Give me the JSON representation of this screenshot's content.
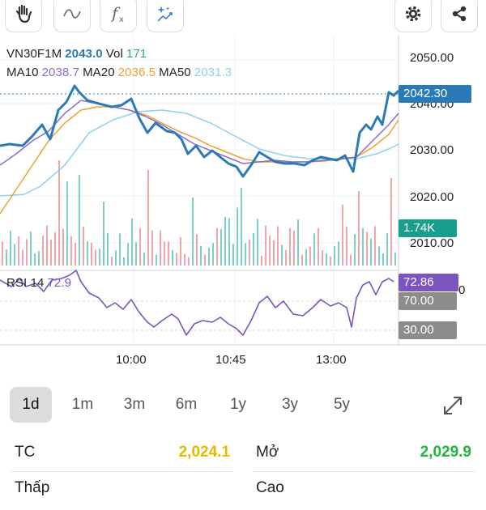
{
  "toolbar": {
    "icons": [
      "hand-icon",
      "wave-line-icon",
      "function-icon",
      "sparkle-chart-icon",
      "gear-icon",
      "share-icon"
    ]
  },
  "chart": {
    "symbol": "VN30F1M",
    "price": "2043.0",
    "vol_label": "Vol",
    "vol": "171",
    "ma10_label": "MA10",
    "ma10": "2038.7",
    "ma20_label": "MA20",
    "ma20": "2036.5",
    "ma50_label": "MA50",
    "ma50": "2031.3",
    "price_axis": [
      "2050.00",
      "2040.00",
      "2030.00",
      "2020.00",
      "2010.00"
    ],
    "last_price_tag": "2042.30",
    "volume_tag": "1.74K",
    "rsi_label": "RSI 14",
    "rsi_value": "72.9",
    "rsi_tag": "72.86",
    "rsi_upper": "70.00",
    "rsi_lower": "30.00",
    "time_axis": [
      "10:00",
      "10:45",
      "13:00"
    ],
    "colors": {
      "price": "#2a7ab8",
      "ma10": "#8a6bd0",
      "ma20": "#f0a030",
      "ma50": "#8fd0f0",
      "rsi": "#7a55c0",
      "vol_up": "#7ccfc4",
      "vol_down": "#f2a4a8",
      "volume_tag": "#1a9e8c",
      "rsi_tag": "#7a55c0",
      "level_tag": "#8c8c8c"
    }
  },
  "periods": {
    "items": [
      "1d",
      "1m",
      "3m",
      "6m",
      "1y",
      "3y",
      "5y"
    ],
    "active": "1d"
  },
  "stats": {
    "tc_label": "TC",
    "tc_value": "2,024.1",
    "mo_label": "Mở",
    "mo_value": "2,029.9",
    "row2_left_label": "Thấp",
    "row2_right_label": "Cao",
    "colors": {
      "tc": "#e6b800",
      "mo": "#1fb53a",
      "low": "#e23030"
    }
  }
}
